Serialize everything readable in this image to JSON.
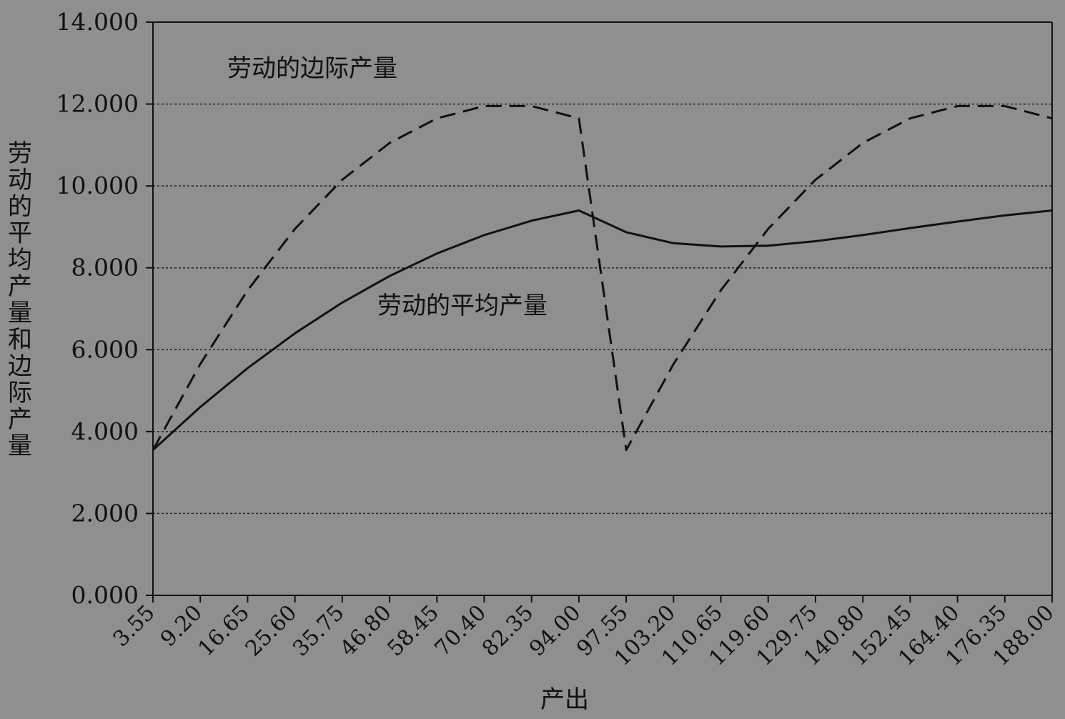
{
  "chart_data": {
    "type": "line",
    "title": "",
    "xlabel": "产出",
    "ylabel": "劳动的平均产量和边际产量",
    "ylim": [
      0,
      14
    ],
    "y_ticks": [
      "0.000",
      "2.000",
      "4.000",
      "6.000",
      "8.000",
      "10.000",
      "12.000",
      "14.000"
    ],
    "y_grid_values": [
      2,
      4,
      6,
      8,
      10,
      12
    ],
    "grid": "horizontal dotted",
    "categories": [
      "3.55",
      "9.20",
      "16.65",
      "25.60",
      "35.75",
      "46.80",
      "58.45",
      "70.40",
      "82.35",
      "94.00",
      "97.55",
      "103.20",
      "110.65",
      "119.60",
      "129.75",
      "140.80",
      "152.45",
      "164.40",
      "176.35",
      "188.00"
    ],
    "series": [
      {
        "name": "劳动的边际产量",
        "style": "dashed",
        "values": [
          3.55,
          5.65,
          7.45,
          8.95,
          10.15,
          11.05,
          11.65,
          11.95,
          11.95,
          11.65,
          3.55,
          5.65,
          7.45,
          8.95,
          10.15,
          11.05,
          11.65,
          11.95,
          11.95,
          11.65
        ]
      },
      {
        "name": "劳动的平均产量",
        "style": "solid",
        "values": [
          3.55,
          4.6,
          5.55,
          6.4,
          7.15,
          7.8,
          8.35,
          8.8,
          9.15,
          9.4,
          8.87,
          8.6,
          8.52,
          8.54,
          8.65,
          8.8,
          8.97,
          9.13,
          9.28,
          9.4
        ]
      }
    ],
    "annotations": [
      {
        "text": "劳动的边际产量",
        "series": "劳动的边际产量"
      },
      {
        "text": "劳动的平均产量",
        "series": "劳动的平均产量"
      }
    ],
    "colors": {
      "background": "#8f8f8f",
      "line": "#111111",
      "grid": "#222222"
    }
  }
}
